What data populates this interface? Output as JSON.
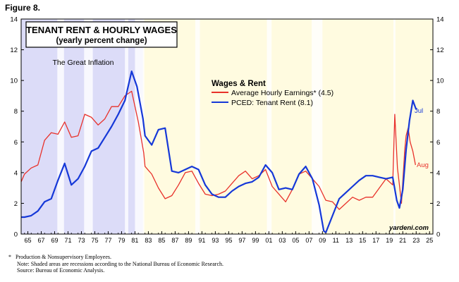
{
  "figure_label": "Figure 8.",
  "footnotes": {
    "star": "*",
    "star_text": "Production & Nonsupervisory Employees.",
    "note": "Note: Shaded areas are recessions according to the National Bureau of Economic Research.",
    "source": "Source: Bureau of Economic Analysis."
  },
  "colors": {
    "earnings": "#e8312a",
    "rent": "#1538d8",
    "shade_inflation": "#dcdcf8",
    "plot_bg": "#fffbe0",
    "recession": "#ffffff"
  },
  "chart_data": {
    "type": "line",
    "title": "TENANT RENT & HOURLY WAGES",
    "subtitle": "(yearly percent change)",
    "annotation": "The Great Inflation",
    "legend_title": "Wages & Rent",
    "legend_position": "top-center",
    "watermark": "yardeni.com",
    "ylim": [
      0,
      14
    ],
    "yticks": [
      0,
      2,
      4,
      6,
      8,
      10,
      12,
      14
    ],
    "xlim": [
      1964.5,
      2026
    ],
    "xticks": [
      "65",
      "67",
      "69",
      "71",
      "73",
      "75",
      "77",
      "79",
      "81",
      "83",
      "85",
      "87",
      "89",
      "91",
      "93",
      "95",
      "97",
      "99",
      "01",
      "03",
      "05",
      "07",
      "09",
      "11",
      "13",
      "15",
      "17",
      "19",
      "21",
      "23",
      "25"
    ],
    "grid": false,
    "great_inflation_shade": [
      1964.5,
      1982.7
    ],
    "recessions": [
      [
        1969.9,
        1970.9
      ],
      [
        1973.9,
        1975.2
      ],
      [
        1980.0,
        1980.5
      ],
      [
        1981.5,
        1982.9
      ],
      [
        1990.5,
        1991.2
      ],
      [
        2001.2,
        2001.9
      ],
      [
        2007.9,
        2009.5
      ],
      [
        2020.1,
        2020.4
      ]
    ],
    "series": [
      {
        "name": "Average Hourly Earnings* (4.5)",
        "end_label": "Aug",
        "points": [
          [
            1964.5,
            3.4
          ],
          [
            1965,
            3.9
          ],
          [
            1966,
            4.3
          ],
          [
            1967,
            4.5
          ],
          [
            1968,
            6.1
          ],
          [
            1969,
            6.6
          ],
          [
            1970,
            6.5
          ],
          [
            1971,
            7.3
          ],
          [
            1972,
            6.3
          ],
          [
            1973,
            6.4
          ],
          [
            1974,
            7.8
          ],
          [
            1975,
            7.6
          ],
          [
            1976,
            7.1
          ],
          [
            1977,
            7.5
          ],
          [
            1978,
            8.3
          ],
          [
            1979,
            8.3
          ],
          [
            1980,
            9.0
          ],
          [
            1981,
            9.3
          ],
          [
            1982,
            7.3
          ],
          [
            1982.8,
            5.3
          ],
          [
            1983,
            4.4
          ],
          [
            1984,
            3.9
          ],
          [
            1985,
            3.0
          ],
          [
            1986,
            2.3
          ],
          [
            1987,
            2.5
          ],
          [
            1988,
            3.2
          ],
          [
            1989,
            4.0
          ],
          [
            1990,
            4.1
          ],
          [
            1991,
            3.3
          ],
          [
            1992,
            2.6
          ],
          [
            1993,
            2.5
          ],
          [
            1994,
            2.6
          ],
          [
            1995,
            2.8
          ],
          [
            1996,
            3.3
          ],
          [
            1997,
            3.8
          ],
          [
            1998,
            4.1
          ],
          [
            1999,
            3.6
          ],
          [
            2000,
            3.8
          ],
          [
            2001,
            4.2
          ],
          [
            2002,
            3.1
          ],
          [
            2003,
            2.6
          ],
          [
            2004,
            2.1
          ],
          [
            2005,
            2.9
          ],
          [
            2006,
            3.9
          ],
          [
            2007,
            4.1
          ],
          [
            2008,
            3.6
          ],
          [
            2009,
            3.1
          ],
          [
            2010,
            2.2
          ],
          [
            2011,
            2.1
          ],
          [
            2012,
            1.6
          ],
          [
            2013,
            2.0
          ],
          [
            2014,
            2.4
          ],
          [
            2015,
            2.2
          ],
          [
            2016,
            2.4
          ],
          [
            2017,
            2.4
          ],
          [
            2018,
            3.0
          ],
          [
            2019,
            3.6
          ],
          [
            2020,
            3.2
          ],
          [
            2020.3,
            7.8
          ],
          [
            2020.7,
            4.3
          ],
          [
            2021,
            3.2
          ],
          [
            2021.3,
            2.0
          ],
          [
            2021.8,
            5.5
          ],
          [
            2022,
            6.4
          ],
          [
            2022.3,
            6.9
          ],
          [
            2022.6,
            6.0
          ],
          [
            2023,
            5.4
          ],
          [
            2023.4,
            4.5
          ]
        ]
      },
      {
        "name": "PCED: Tenant Rent (8.1)",
        "end_label": "Jul",
        "points": [
          [
            1964.5,
            1.1
          ],
          [
            1965,
            1.1
          ],
          [
            1966,
            1.2
          ],
          [
            1967,
            1.5
          ],
          [
            1968,
            2.1
          ],
          [
            1969,
            2.3
          ],
          [
            1970,
            3.5
          ],
          [
            1971,
            4.6
          ],
          [
            1972,
            3.2
          ],
          [
            1973,
            3.6
          ],
          [
            1974,
            4.4
          ],
          [
            1975,
            5.4
          ],
          [
            1976,
            5.6
          ],
          [
            1977,
            6.3
          ],
          [
            1978,
            7.0
          ],
          [
            1979,
            7.8
          ],
          [
            1980,
            8.7
          ],
          [
            1981,
            10.6
          ],
          [
            1981.8,
            9.6
          ],
          [
            1982.7,
            7.5
          ],
          [
            1983,
            6.4
          ],
          [
            1984,
            5.8
          ],
          [
            1985,
            6.8
          ],
          [
            1986,
            6.9
          ],
          [
            1987,
            4.1
          ],
          [
            1988,
            4.0
          ],
          [
            1989,
            4.2
          ],
          [
            1990,
            4.4
          ],
          [
            1991,
            4.2
          ],
          [
            1992,
            3.2
          ],
          [
            1993,
            2.6
          ],
          [
            1994,
            2.4
          ],
          [
            1995,
            2.4
          ],
          [
            1996,
            2.8
          ],
          [
            1997,
            3.1
          ],
          [
            1998,
            3.3
          ],
          [
            1999,
            3.4
          ],
          [
            2000,
            3.7
          ],
          [
            2001,
            4.5
          ],
          [
            2002,
            4.0
          ],
          [
            2003,
            2.9
          ],
          [
            2004,
            3.0
          ],
          [
            2005,
            2.9
          ],
          [
            2006,
            3.9
          ],
          [
            2007,
            4.4
          ],
          [
            2008,
            3.6
          ],
          [
            2009,
            1.9
          ],
          [
            2009.7,
            0.2
          ],
          [
            2010,
            0.1
          ],
          [
            2011,
            1.2
          ],
          [
            2012,
            2.3
          ],
          [
            2013,
            2.7
          ],
          [
            2014,
            3.1
          ],
          [
            2015,
            3.5
          ],
          [
            2016,
            3.8
          ],
          [
            2017,
            3.8
          ],
          [
            2018,
            3.7
          ],
          [
            2019,
            3.6
          ],
          [
            2020,
            3.7
          ],
          [
            2020.6,
            2.2
          ],
          [
            2021,
            1.7
          ],
          [
            2021.5,
            2.9
          ],
          [
            2022,
            5.5
          ],
          [
            2022.5,
            7.4
          ],
          [
            2023,
            8.7
          ],
          [
            2023.5,
            8.1
          ]
        ]
      }
    ]
  }
}
